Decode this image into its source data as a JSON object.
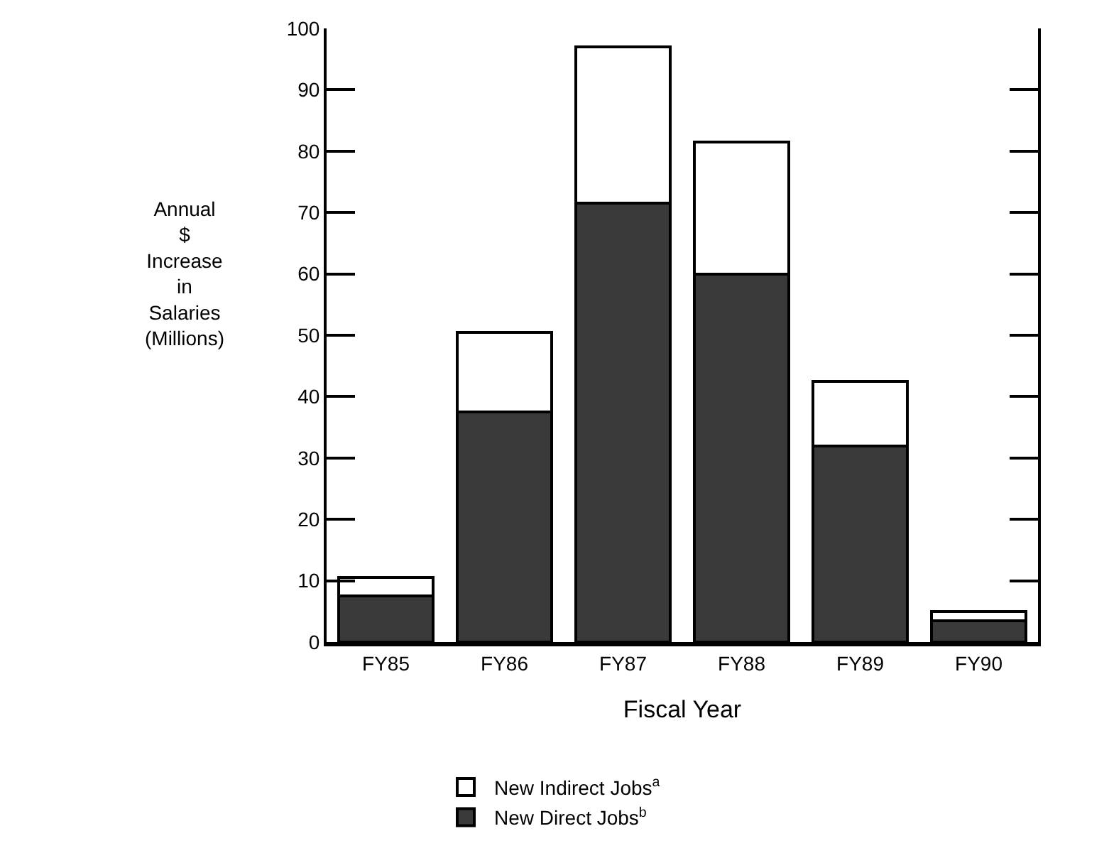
{
  "chart_data": {
    "type": "bar",
    "stacked": true,
    "xlabel": "Fiscal Year",
    "ylabel": "Annual\n$\nIncrease\nin\nSalaries\n(Millions)",
    "categories": [
      "FY85",
      "FY86",
      "FY87",
      "FY88",
      "FY89",
      "FY90"
    ],
    "series": [
      {
        "name": "New Direct Jobs$^{b}$",
        "color": "#3a3a3a",
        "values": [
          7.5,
          37.5,
          71.5,
          60,
          32,
          3.5
        ]
      },
      {
        "name": "New Indirect Jobs$^{a}$",
        "color": "#ffffff",
        "values": [
          3,
          13,
          25.5,
          21.5,
          10.5,
          1.5
        ]
      }
    ],
    "ylim": [
      0,
      100
    ],
    "yticks": [
      0,
      10,
      20,
      30,
      40,
      50,
      60,
      70,
      80,
      90,
      100
    ],
    "grid": false,
    "legend": "bottom"
  }
}
